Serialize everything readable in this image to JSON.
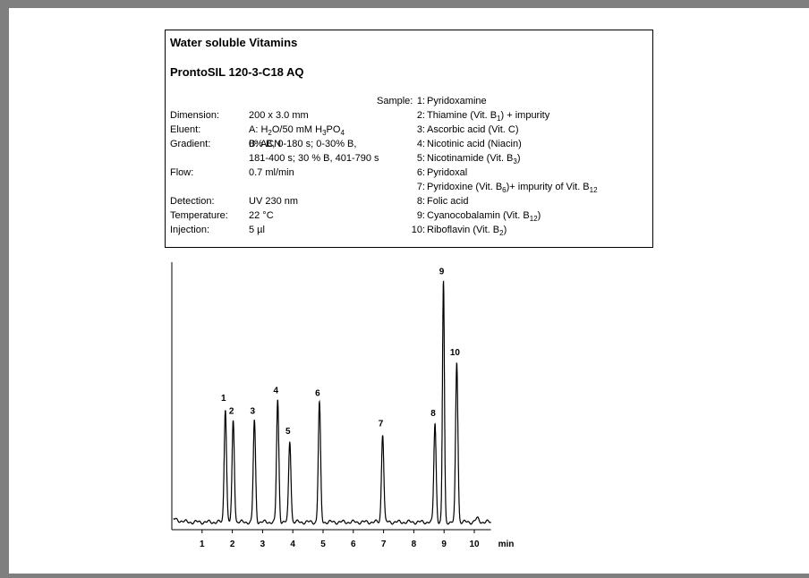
{
  "box": {
    "title": "Water soluble Vitamins",
    "subtitle": "ProntoSIL 120-3-C18 AQ",
    "sample_label": "Sample:",
    "params": [
      {
        "label": "Dimension:",
        "lines": [
          [
            "200 x 3.0 mm"
          ]
        ]
      },
      {
        "label": "Eluent:",
        "lines": [
          [
            "A: H",
            {
              "sub": "2"
            },
            "O/50 mM H",
            {
              "sub": "3"
            },
            "PO",
            {
              "sub": "4"
            }
          ],
          [
            "B: ACN"
          ]
        ]
      },
      {
        "label": "Gradient:",
        "lines": [
          [
            "0% B, 0-180 s; 0-30% B,"
          ],
          [
            "181-400 s; 30 % B, 401-790 s"
          ]
        ]
      },
      {
        "label": "Flow:",
        "lines": [
          [
            "0.7 ml/min"
          ]
        ]
      },
      {
        "label": "Detection:",
        "lines": [
          [
            "UV 230 nm"
          ]
        ]
      },
      {
        "label": "Temperature:",
        "lines": [
          [
            "22 °C"
          ]
        ]
      },
      {
        "label": "Injection:",
        "lines": [
          [
            "5 µl"
          ]
        ]
      }
    ],
    "samples": [
      {
        "num": "1:",
        "name": [
          "Pyridoxamine"
        ]
      },
      {
        "num": "2:",
        "name": [
          "Thiamine (Vit. B",
          {
            "sub": "1"
          },
          ") + impurity"
        ]
      },
      {
        "num": "3:",
        "name": [
          "Ascorbic acid (Vit. C)"
        ]
      },
      {
        "num": "4:",
        "name": [
          "Nicotinic acid (Niacin)"
        ]
      },
      {
        "num": "5:",
        "name": [
          "Nicotinamide (Vit. B",
          {
            "sub": "3"
          },
          ")"
        ]
      },
      {
        "num": "6:",
        "name": [
          "Pyridoxal"
        ]
      },
      {
        "num": "7:",
        "name": [
          "Pyridoxine (Vit. B",
          {
            "sub": "6"
          },
          ")+ impurity of Vit. B",
          {
            "sub": "12"
          }
        ]
      },
      {
        "num": "8:",
        "name": [
          "Folic acid"
        ]
      },
      {
        "num": "9:",
        "name": [
          "Cyanocobalamin (Vit. B",
          {
            "sub": "12"
          },
          ")"
        ]
      },
      {
        "num": "10:",
        "name": [
          "Riboflavin (Vit. B",
          {
            "sub": "2"
          },
          ")"
        ]
      }
    ]
  },
  "chart_data": {
    "type": "line",
    "title": "",
    "xlabel": "min",
    "ylabel": "",
    "xlim": [
      0.0,
      10.55
    ],
    "ylim": [
      0.0,
      100.0
    ],
    "xticks": [
      1,
      2,
      3,
      4,
      5,
      6,
      7,
      8,
      9,
      10
    ],
    "baseline": 3.0,
    "peaks": [
      {
        "label": "1",
        "x": 1.77,
        "y": 48
      },
      {
        "label": "2",
        "x": 2.03,
        "y": 43
      },
      {
        "label": "3",
        "x": 2.73,
        "y": 43
      },
      {
        "label": "4",
        "x": 3.5,
        "y": 51
      },
      {
        "label": "5",
        "x": 3.9,
        "y": 35
      },
      {
        "label": "6",
        "x": 4.88,
        "y": 50
      },
      {
        "label": "7",
        "x": 6.97,
        "y": 38
      },
      {
        "label": "8",
        "x": 8.7,
        "y": 42
      },
      {
        "label": "9",
        "x": 8.98,
        "y": 98
      },
      {
        "label": "10",
        "x": 9.42,
        "y": 66
      }
    ],
    "grid": false,
    "colors": {
      "trace": "#000000",
      "background": "#7f7f7f"
    }
  }
}
